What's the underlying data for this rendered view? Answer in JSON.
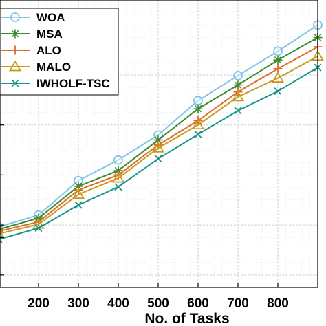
{
  "chart_data": {
    "type": "line",
    "xlabel": "No. of Tasks",
    "ylabel": "",
    "x": [
      100,
      200,
      300,
      400,
      500,
      600,
      700,
      800,
      900
    ],
    "xlim": [
      100,
      900
    ],
    "ylim": [
      0,
      460
    ],
    "xticks": [
      200,
      300,
      400,
      500,
      600,
      700,
      800
    ],
    "xtick_labels": [
      "200",
      "300",
      "400",
      "500",
      "600",
      "700",
      "800"
    ],
    "yticks": [
      20,
      80,
      100,
      180,
      260,
      340,
      420
    ],
    "grid": true,
    "legend_position": "top-left",
    "series": [
      {
        "name": "WOA",
        "color": "#7fc6e6",
        "marker": "circle",
        "values": [
          97,
          116,
          171,
          204,
          244,
          299,
          339,
          378,
          420
        ]
      },
      {
        "name": "MSA",
        "color": "#3a8a2e",
        "marker": "star",
        "values": [
          93,
          111,
          162,
          187,
          236,
          286,
          324,
          364,
          400
        ]
      },
      {
        "name": "ALO",
        "color": "#e06a2a",
        "marker": "plus",
        "values": [
          90,
          105,
          156,
          180,
          228,
          267,
          313,
          350,
          385
        ]
      },
      {
        "name": "MALO",
        "color": "#c89a1a",
        "marker": "triangle",
        "values": [
          86,
          101,
          149,
          175,
          223,
          260,
          305,
          335,
          370
        ]
      },
      {
        "name": "IWHOLF-TSC",
        "color": "#17968c",
        "marker": "x",
        "values": [
          77,
          95,
          132,
          161,
          206,
          245,
          283,
          314,
          352
        ]
      }
    ]
  }
}
